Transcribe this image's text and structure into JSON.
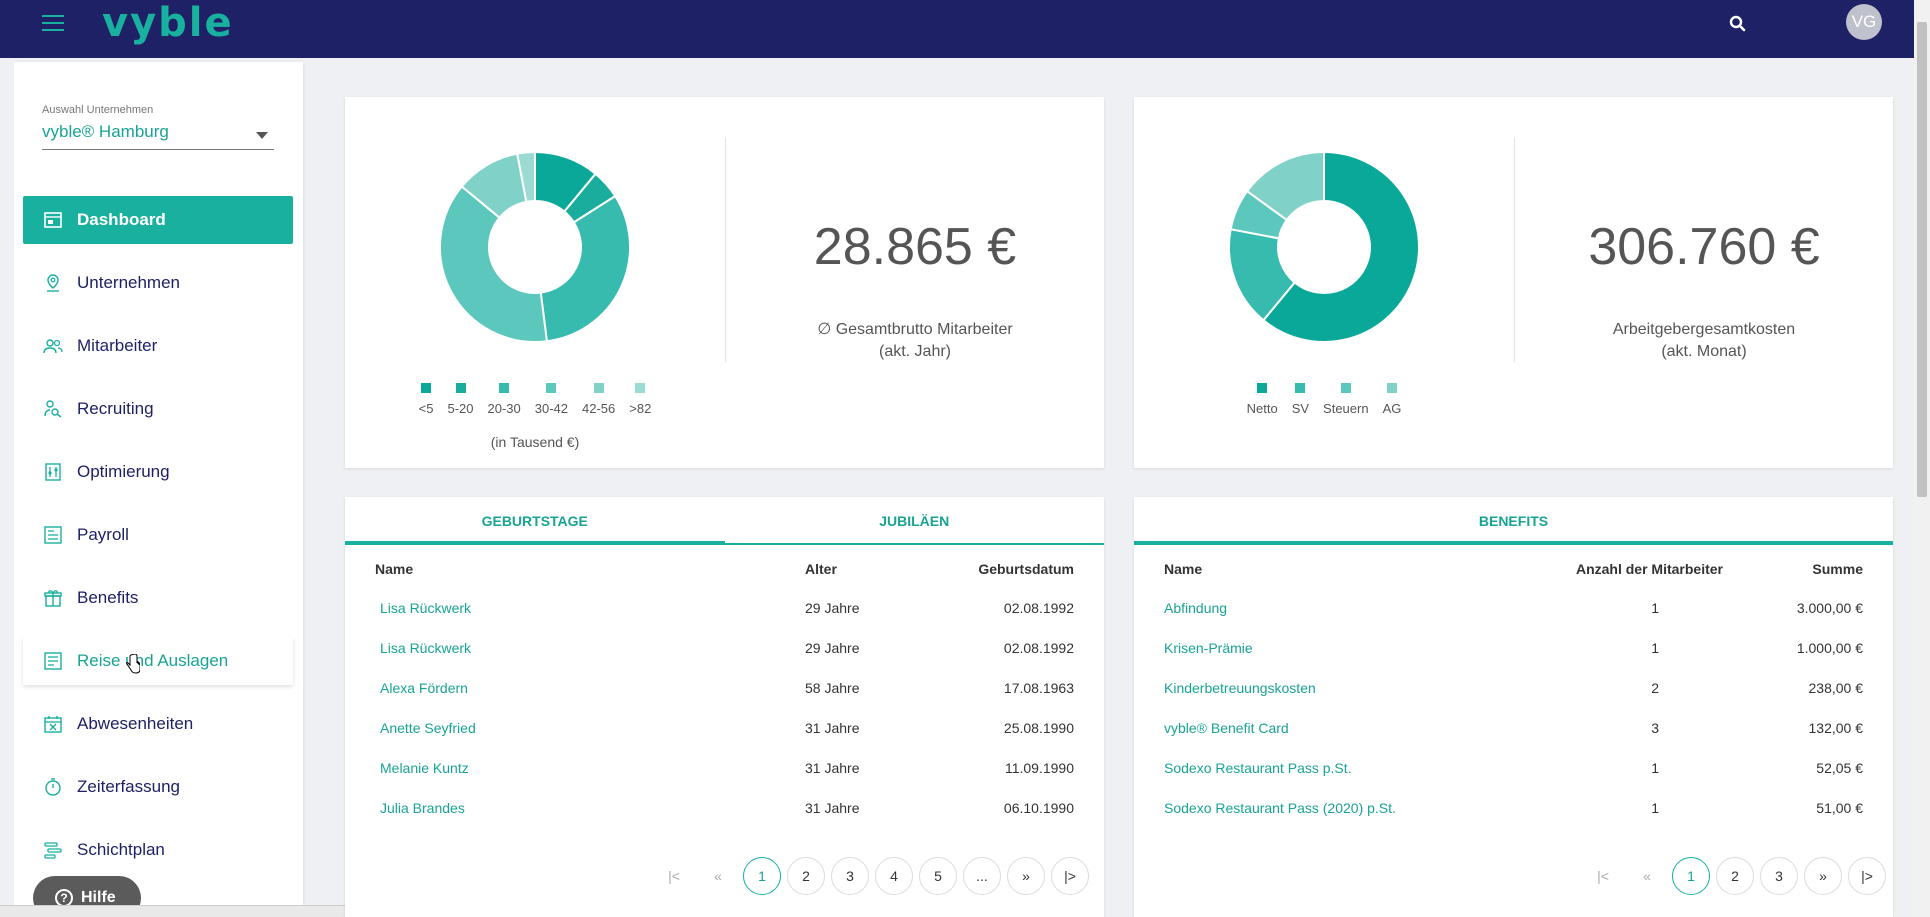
{
  "header": {
    "logo": "vyble",
    "avatar_initials": "VG"
  },
  "sidebar": {
    "company_label": "Auswahl Unternehmen",
    "company_value": "vyble® Hamburg",
    "items": [
      {
        "label": "Dashboard",
        "icon": "dashboard-icon"
      },
      {
        "label": "Unternehmen",
        "icon": "location-pin-icon"
      },
      {
        "label": "Mitarbeiter",
        "icon": "users-icon"
      },
      {
        "label": "Recruiting",
        "icon": "recruiting-icon"
      },
      {
        "label": "Optimierung",
        "icon": "optimize-icon"
      },
      {
        "label": "Payroll",
        "icon": "payroll-icon"
      },
      {
        "label": "Benefits",
        "icon": "gift-icon"
      },
      {
        "label": "Reise und Auslagen",
        "icon": "receipt-icon"
      },
      {
        "label": "Abwesenheiten",
        "icon": "calendar-x-icon"
      },
      {
        "label": "Zeiterfassung",
        "icon": "stopwatch-icon"
      },
      {
        "label": "Schichtplan",
        "icon": "schedule-icon"
      }
    ],
    "help_label": "Hilfe"
  },
  "colors": {
    "accent": "#19b0a0",
    "topbar": "#1f2166"
  },
  "kpi1": {
    "value": "28.865 €",
    "label_line1": "∅ Gesamtbrutto Mitarbeiter",
    "label_line2": "(akt. Jahr)",
    "unit_note": "(in Tausend €)"
  },
  "kpi2": {
    "value": "306.760 €",
    "label_line1": "Arbeitgebergesamtkosten",
    "label_line2": "(akt. Monat)"
  },
  "chart_data": [
    {
      "type": "pie",
      "categories": [
        "<5",
        "5-20",
        "20-30",
        "30-42",
        "42-56",
        ">82"
      ],
      "values": [
        11,
        5,
        32,
        38,
        11,
        3
      ],
      "colors": [
        "#0aa898",
        "#1aad9d",
        "#36bbae",
        "#5cc8bd",
        "#80d2c9",
        "#9adbd3"
      ]
    },
    {
      "type": "pie",
      "categories": [
        "Netto",
        "SV",
        "Steuern",
        "AG"
      ],
      "values": [
        61,
        17,
        7,
        15
      ],
      "colors": [
        "#0aa898",
        "#36bbae",
        "#5cc8bd",
        "#80d2c9"
      ]
    }
  ],
  "birthdays": {
    "tab1": "GEBURTSTAGE",
    "tab2": "JUBILÄEN",
    "col_name": "Name",
    "col_age": "Alter",
    "col_date": "Geburtsdatum",
    "rows": [
      {
        "name": "Lisa Rückwerk",
        "age": "29 Jahre",
        "date": "02.08.1992"
      },
      {
        "name": "Lisa Rückwerk",
        "age": "29 Jahre",
        "date": "02.08.1992"
      },
      {
        "name": "Alexa Fördern",
        "age": "58 Jahre",
        "date": "17.08.1963"
      },
      {
        "name": "Anette Seyfried",
        "age": "31 Jahre",
        "date": "25.08.1990"
      },
      {
        "name": "Melanie Kuntz",
        "age": "31 Jahre",
        "date": "11.09.1990"
      },
      {
        "name": "Julia Brandes",
        "age": "31 Jahre",
        "date": "06.10.1990"
      }
    ],
    "pages": [
      "|<",
      "«",
      "1",
      "2",
      "3",
      "4",
      "5",
      "...",
      "»",
      "|>"
    ]
  },
  "benefits": {
    "tab": "BENEFITS",
    "col_name": "Name",
    "col_count": "Anzahl der Mitarbeiter",
    "col_sum": "Summe",
    "rows": [
      {
        "name": "Abfindung",
        "count": "1",
        "sum": "3.000,00 €"
      },
      {
        "name": "Krisen-Prämie",
        "count": "1",
        "sum": "1.000,00 €"
      },
      {
        "name": "Kinderbetreuungskosten",
        "count": "2",
        "sum": "238,00 €"
      },
      {
        "name": "vyble® Benefit Card",
        "count": "3",
        "sum": "132,00 €"
      },
      {
        "name": "Sodexo Restaurant Pass p.St.",
        "count": "1",
        "sum": "52,05 €"
      },
      {
        "name": "Sodexo Restaurant Pass (2020) p.St.",
        "count": "1",
        "sum": "51,00 €"
      }
    ],
    "pages": [
      "|<",
      "«",
      "1",
      "2",
      "3",
      "»",
      "|>"
    ]
  }
}
